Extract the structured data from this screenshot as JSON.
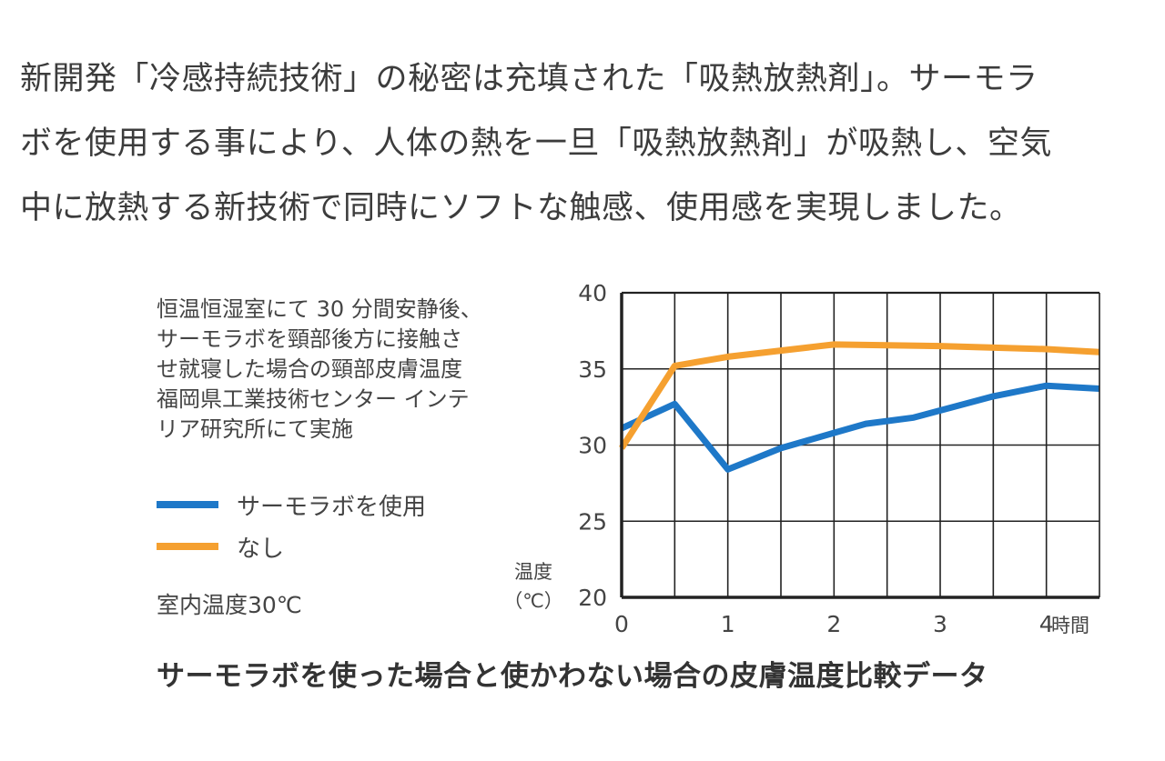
{
  "intro": {
    "lines": [
      "新開発「冷感持続技術」の秘密は充填された「吸熱放熱剤」。サーモラ",
      "ボを使用する事により、人体の熱を一旦「吸熱放熱剤」が吸熱し、空気",
      "中に放熱する新技術で同時にソフトな触感、使用感を実現しました。"
    ]
  },
  "description": {
    "lines": [
      "恒温恒湿室にて 30 分間安静後、",
      "サーモラボを頸部後方に接触さ",
      "せ就寝した場合の頸部皮膚温度",
      "福岡県工業技術センター インテ",
      "リア研究所にて実施"
    ]
  },
  "room_temp": "室内温度30℃",
  "caption": "サーモラボを使った場合と使かわない場合の皮膚温度比較データ",
  "colors": {
    "with_product": "#1e78c8",
    "without": "#f5a030",
    "grid": "#222222"
  },
  "chart_data": {
    "type": "line",
    "title": "サーモラボを使った場合と使かわない場合の皮膚温度比較データ",
    "xlabel": "時間",
    "ylabel": "温度（℃）",
    "ylabel_lines": [
      "温度",
      "（℃）"
    ],
    "xlim": [
      0,
      4.5
    ],
    "ylim": [
      20,
      40
    ],
    "x_ticks": [
      0,
      1,
      2,
      3,
      4
    ],
    "y_ticks": [
      20,
      25,
      30,
      35,
      40
    ],
    "grid": true,
    "legend_position": "left",
    "series": [
      {
        "name": "サーモラボを使用",
        "color": "#1e78c8",
        "points": [
          [
            0,
            31.1
          ],
          [
            0.5,
            32.7
          ],
          [
            1,
            28.4
          ],
          [
            1.5,
            29.8
          ],
          [
            2,
            30.8
          ],
          [
            2.3,
            31.4
          ],
          [
            2.75,
            31.8
          ],
          [
            3.5,
            33.2
          ],
          [
            4,
            33.9
          ],
          [
            4.5,
            33.7
          ]
        ]
      },
      {
        "name": "なし",
        "color": "#f5a030",
        "points": [
          [
            0,
            29.8
          ],
          [
            0.5,
            35.2
          ],
          [
            1,
            35.8
          ],
          [
            1.5,
            36.2
          ],
          [
            2,
            36.6
          ],
          [
            3,
            36.5
          ],
          [
            4,
            36.3
          ],
          [
            4.5,
            36.1
          ]
        ]
      }
    ]
  }
}
